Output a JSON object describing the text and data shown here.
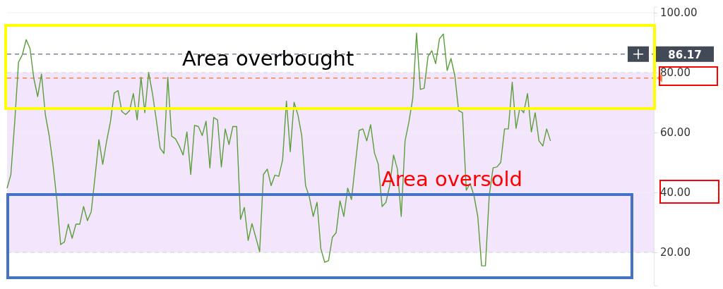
{
  "chart_data": {
    "type": "line",
    "categories": [
      null,
      null,
      null,
      null,
      null,
      null,
      null,
      null,
      null,
      null,
      null,
      null,
      null,
      null,
      null,
      null,
      null,
      null,
      null,
      null,
      null,
      null,
      null,
      null,
      null,
      null,
      null,
      null,
      null,
      null,
      null,
      null,
      null,
      null,
      null,
      null,
      null,
      null,
      null,
      null,
      null,
      null,
      null,
      null,
      null,
      null,
      null,
      null,
      null,
      null,
      null,
      null,
      null,
      null,
      null,
      null,
      null,
      null,
      null,
      null,
      null,
      null,
      null,
      null,
      null,
      null,
      null,
      null,
      null,
      null,
      null,
      null,
      null,
      null,
      null,
      null,
      null,
      null,
      null,
      null,
      null,
      null,
      null,
      null,
      null,
      null,
      null,
      null,
      null,
      null,
      null,
      null,
      null,
      null,
      null,
      null,
      null,
      null,
      null,
      null,
      null,
      null,
      null,
      null,
      null,
      null,
      null,
      null,
      null,
      null,
      null,
      null,
      null,
      null,
      null,
      null,
      null,
      null,
      null,
      null,
      null,
      null,
      null,
      null,
      null,
      null,
      null,
      null,
      null,
      null,
      null,
      null,
      null,
      null,
      null,
      null,
      null,
      null,
      null,
      null,
      null,
      null,
      null,
      null,
      null,
      null,
      null,
      null,
      null,
      null,
      null,
      null,
      null,
      null,
      null,
      null,
      null,
      null,
      null,
      null,
      null,
      null,
      null,
      null,
      null,
      null,
      null,
      null,
      null,
      null
    ],
    "series": [
      {
        "color": "#5a9e3a",
        "values": [
          41.4,
          46,
          63.5,
          83.5,
          86,
          91,
          88,
          78,
          72,
          79.5,
          66,
          59,
          49.4,
          37.6,
          22.6,
          23.5,
          29.4,
          24.7,
          29.4,
          29.4,
          35.3,
          30.6,
          33.6,
          45.4,
          57.6,
          49.4,
          57,
          63.5,
          73.2,
          74,
          67,
          66,
          67.3,
          73,
          64.2,
          78.4,
          66.6,
          80,
          73,
          64.2,
          54.8,
          53,
          78.4,
          58.8,
          57.9,
          55.5,
          52.5,
          60.2,
          46,
          62.4,
          62,
          59,
          63.8,
          48.2,
          65,
          64.2,
          48.5,
          61.2,
          56,
          62,
          62,
          31,
          35,
          24,
          29.6,
          25,
          20.2,
          46,
          47.8,
          42.3,
          45.8,
          45.4,
          50.8,
          70.5,
          53.6,
          70.1,
          65.9,
          59,
          42.3,
          38.4,
          32,
          36.7,
          21.2,
          16.7,
          17.2,
          25,
          26.6,
          37.2,
          32,
          41.4,
          37.6,
          49.4,
          60.7,
          61.2,
          57.2,
          62.6,
          53.2,
          49.4,
          35.3,
          36.7,
          42.3,
          52.5,
          47.8,
          32,
          57.2,
          63.5,
          71.3,
          93.2,
          74.4,
          74.8,
          85.4,
          87.3,
          83,
          91.3,
          92.9,
          80.7,
          84.7,
          79,
          67.3,
          66.6,
          40.7,
          43,
          39,
          32,
          15.5,
          15.5,
          39,
          48.2,
          48.5,
          50,
          61.2,
          61.2,
          76.8,
          61.4,
          68.2,
          66.6,
          73,
          60.2,
          66.6,
          57.2,
          55.5,
          61.2,
          57.2,
          null,
          null,
          null,
          null,
          null,
          null,
          null,
          null,
          null,
          null,
          null,
          null,
          null,
          null,
          null,
          null,
          null,
          null,
          null,
          null,
          null,
          null,
          null,
          null,
          null,
          null,
          null
        ]
      }
    ],
    "ylim": [
      9,
      102
    ],
    "yticks": [
      {
        "value": 20,
        "label": "20.00"
      },
      {
        "value": 40,
        "label": "40.00"
      },
      {
        "value": 60,
        "label": "60.00"
      },
      {
        "value": 80,
        "label": "80.00"
      },
      {
        "value": 100,
        "label": "100.00"
      }
    ],
    "tick_labels": "y",
    "grid": "y",
    "bands": [
      {
        "axis": "y",
        "from": 20,
        "to": 80,
        "color": "#f3e6fc"
      }
    ],
    "ref_lines": [
      {
        "axis": "y",
        "value": 86.17,
        "label": "86.17",
        "color": "#7b8493",
        "line_style": "dashed"
      },
      {
        "axis": "y",
        "value": 78.2,
        "color": "#f2884b",
        "line_style": "dashed"
      }
    ],
    "annotations": [
      "Area overbought",
      "Area oversold"
    ]
  }
}
